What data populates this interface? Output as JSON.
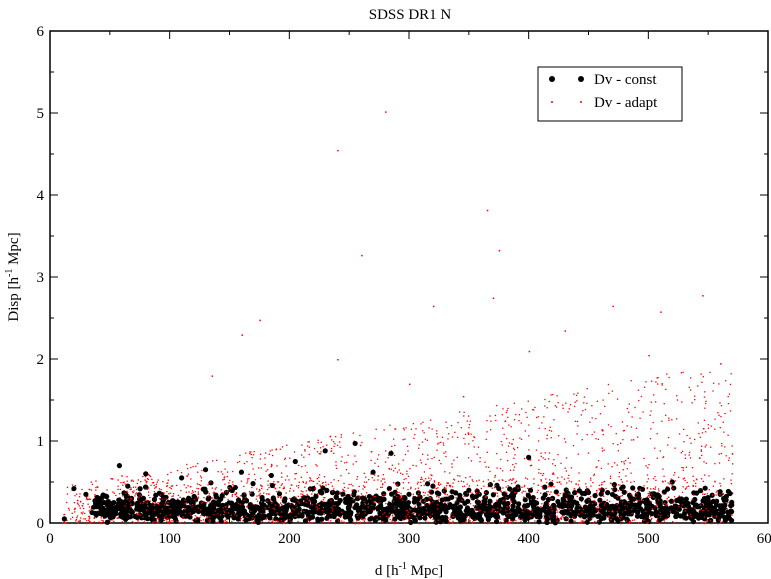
{
  "chart_data": {
    "type": "scatter",
    "title": "SDSS DR1 N",
    "xlabel": "d [h",
    "xlabel_sup": "-1",
    "xlabel_end": " Mpc]",
    "ylabel": "Disp [h",
    "ylabel_sup": "-1",
    "ylabel_end": " Mpc]",
    "xlim": [
      0,
      600
    ],
    "ylim": [
      0,
      6
    ],
    "xticks": [
      0,
      100,
      200,
      300,
      400,
      500,
      600
    ],
    "yticks": [
      0,
      1,
      2,
      3,
      4,
      5,
      6
    ],
    "grid": false,
    "legend_position": "top-right",
    "series": [
      {
        "name": "Dv - const",
        "color": "#000000",
        "marker": "circle",
        "x_range": [
          10,
          570
        ],
        "y_range": [
          0,
          1.0
        ],
        "points": [
          [
            12,
            0.05
          ],
          [
            20,
            0.42
          ],
          [
            30,
            0.35
          ],
          [
            45,
            0.25
          ],
          [
            58,
            0.7
          ],
          [
            65,
            0.45
          ],
          [
            80,
            0.6
          ],
          [
            95,
            0.3
          ],
          [
            110,
            0.55
          ],
          [
            130,
            0.65
          ],
          [
            160,
            0.62
          ],
          [
            185,
            0.58
          ],
          [
            205,
            0.75
          ],
          [
            230,
            0.88
          ],
          [
            255,
            0.97
          ],
          [
            270,
            0.62
          ],
          [
            285,
            0.85
          ],
          [
            300,
            0.35
          ],
          [
            320,
            0.45
          ],
          [
            350,
            0.4
          ],
          [
            375,
            0.42
          ],
          [
            400,
            0.8
          ],
          [
            420,
            0.3
          ],
          [
            450,
            0.28
          ],
          [
            480,
            0.25
          ],
          [
            520,
            0.5
          ],
          [
            540,
            0.22
          ],
          [
            555,
            0.18
          ],
          [
            560,
            0.35
          ],
          [
            565,
            0.28
          ]
        ]
      },
      {
        "name": "Dv - adapt",
        "color": "#ff0000",
        "marker": "dot",
        "x_range": [
          10,
          570
        ],
        "y_range": [
          0,
          5.0
        ],
        "points": [
          [
            280,
            5.02
          ],
          [
            240,
            4.55
          ],
          [
            365,
            3.82
          ],
          [
            260,
            3.27
          ],
          [
            375,
            3.33
          ],
          [
            175,
            2.48
          ],
          [
            160,
            2.3
          ],
          [
            370,
            2.75
          ],
          [
            545,
            2.78
          ],
          [
            470,
            2.65
          ],
          [
            320,
            2.65
          ],
          [
            510,
            2.58
          ],
          [
            430,
            2.35
          ],
          [
            135,
            1.8
          ],
          [
            240,
            2.0
          ],
          [
            400,
            2.1
          ],
          [
            500,
            2.05
          ],
          [
            560,
            1.95
          ],
          [
            300,
            1.7
          ],
          [
            345,
            1.55
          ]
        ]
      }
    ]
  }
}
